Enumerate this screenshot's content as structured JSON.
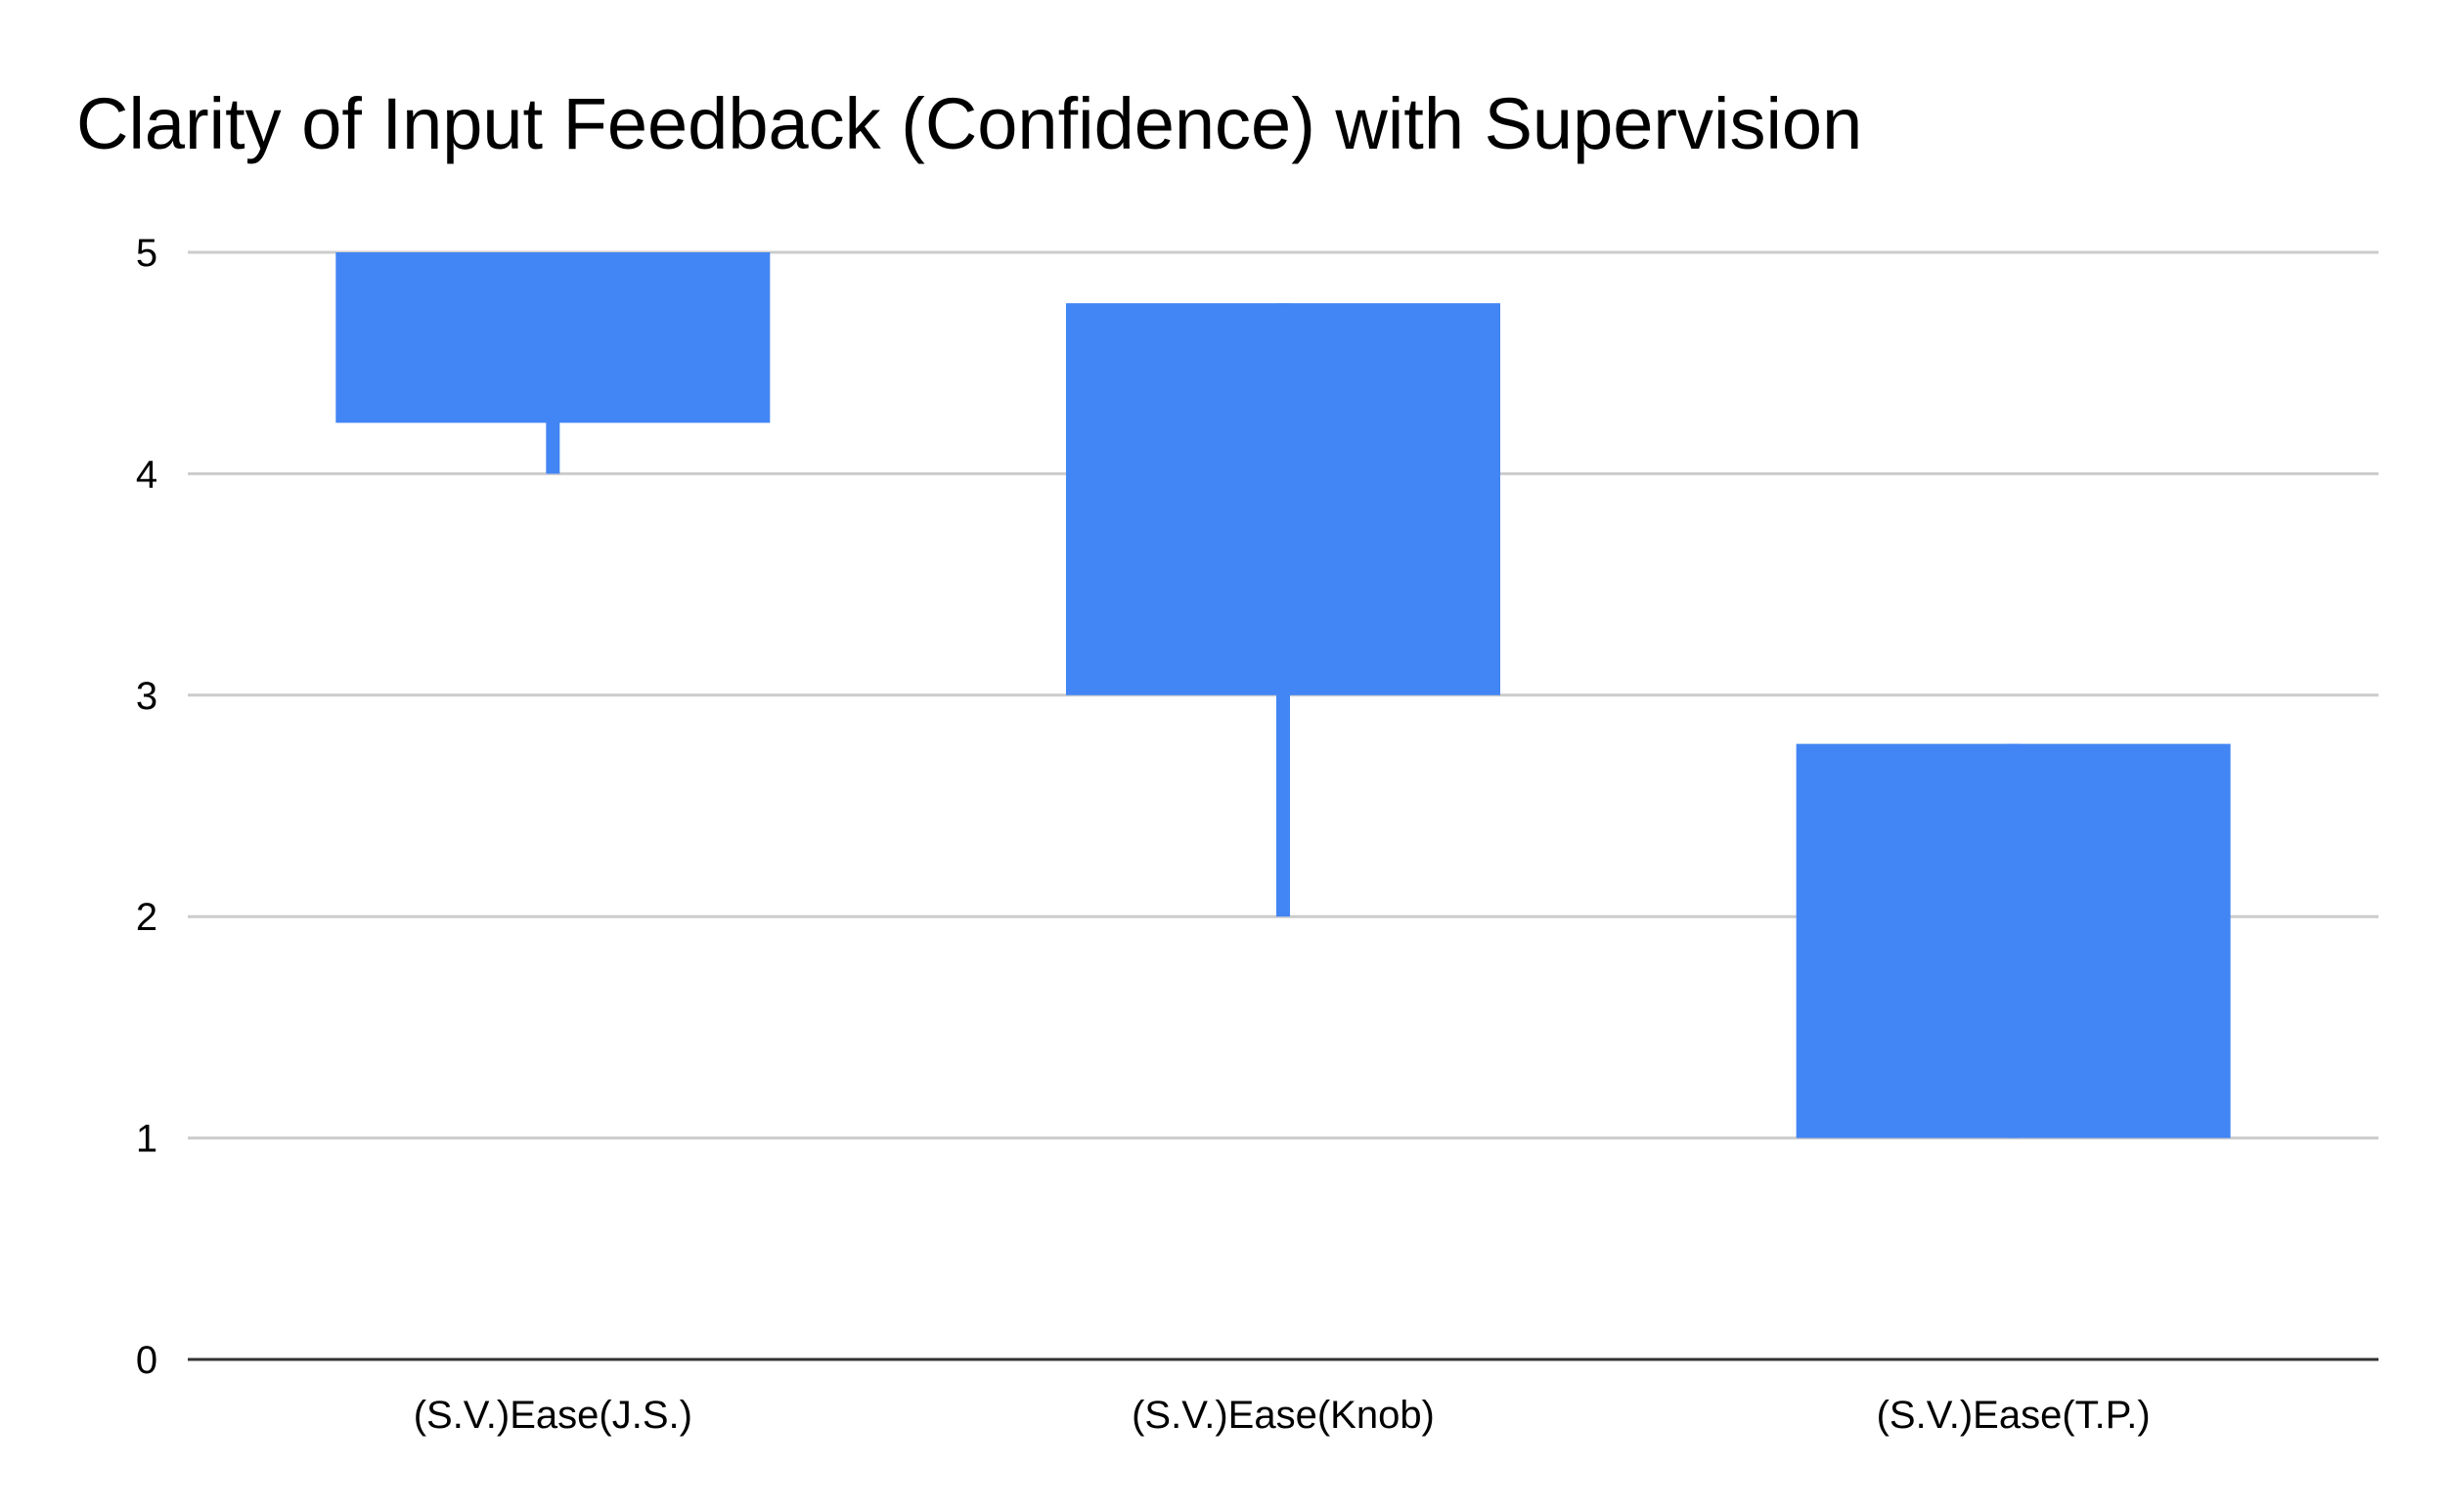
{
  "chart_data": {
    "type": "candlestick",
    "title": "Clarity of Input Feedback (Confidence) with Supervision",
    "xlabel": "",
    "ylabel": "",
    "categories": [
      "(S.V.)Ease(J.S.)",
      "(S.V.)Ease(Knob)",
      "(S.V.)Ease(T.P.)"
    ],
    "series": [
      {
        "low": [
          4,
          2,
          1
        ],
        "open": [
          4.23,
          3,
          1
        ],
        "close": [
          5,
          4.77,
          2.78
        ],
        "high": [
          5,
          4.77,
          2.78
        ]
      }
    ],
    "ylim": [
      0,
      5
    ],
    "yticks": [
      0,
      1,
      2,
      3,
      4,
      5
    ],
    "grid": true,
    "legend": "none",
    "colors": {
      "bar": "#4285f4",
      "grid": "#cccccc",
      "axis": "#333333"
    }
  }
}
